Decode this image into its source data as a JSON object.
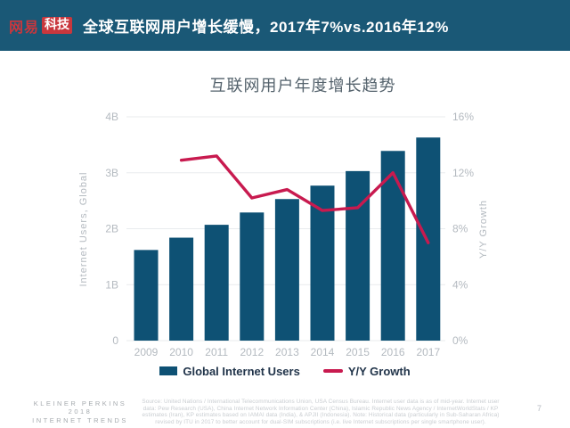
{
  "colors": {
    "header-bg": "#1a5876",
    "logo-red": "#c9373d",
    "title-gray": "#54626c",
    "axis-gray": "#b4bac0",
    "legend-text": "#21344a",
    "footer-gray": "#a6abaf",
    "source-gray": "#c9cdd1"
  },
  "header": {
    "logo_text": "网易",
    "logo_badge": "科技",
    "title": "全球互联网用户增长缓慢，2017年7%vs.2016年12%"
  },
  "chart_data": {
    "type": "bar+line",
    "title": "互联网用户年度增长趋势",
    "categories": [
      "2009",
      "2010",
      "2011",
      "2012",
      "2013",
      "2014",
      "2015",
      "2016",
      "2017"
    ],
    "series": [
      {
        "name": "Global Internet Users",
        "type": "bar",
        "axis": "left",
        "unit": "B",
        "color": "#0e5174",
        "values": [
          1.62,
          1.84,
          2.07,
          2.29,
          2.53,
          2.77,
          3.03,
          3.39,
          3.63
        ]
      },
      {
        "name": "Y/Y Growth",
        "type": "line",
        "axis": "right",
        "unit": "%",
        "color": "#c81a4f",
        "values": [
          null,
          12.9,
          13.2,
          10.2,
          10.8,
          9.3,
          9.5,
          12.0,
          7.0
        ]
      }
    ],
    "y_left": {
      "label": "Internet Users, Global",
      "ticks": [
        "0",
        "1B",
        "2B",
        "3B",
        "4B"
      ],
      "min": 0,
      "max": 4
    },
    "y_right": {
      "label": "Y/Y Growth",
      "ticks": [
        "0%",
        "4%",
        "8%",
        "12%",
        "16%"
      ],
      "min": 0,
      "max": 16
    },
    "grid": true,
    "legend_position": "bottom"
  },
  "footer": {
    "brand_lines": [
      "KLEINER PERKINS",
      "2018",
      "INTERNET TRENDS"
    ],
    "source_lines": [
      "Source: United Nations / International Telecommunications Union, USA Census Bureau. Internet user data is as of mid-year. Internet user",
      "data: Pew Research (USA), China Internet Network Information Center (China), Islamic Republic News Agency / InternetWorldStats / KP",
      "estimates (Iran), KP estimates based on IAMAI data (India), & APJII (Indonesia). Note: Historical data (particularly in Sub-Saharan Africa)",
      "revised by ITU in 2017 to better account for dual-SIM subscriptions (i.e. live Internet subscriptions per single smartphone user)."
    ],
    "page_number": "7"
  }
}
